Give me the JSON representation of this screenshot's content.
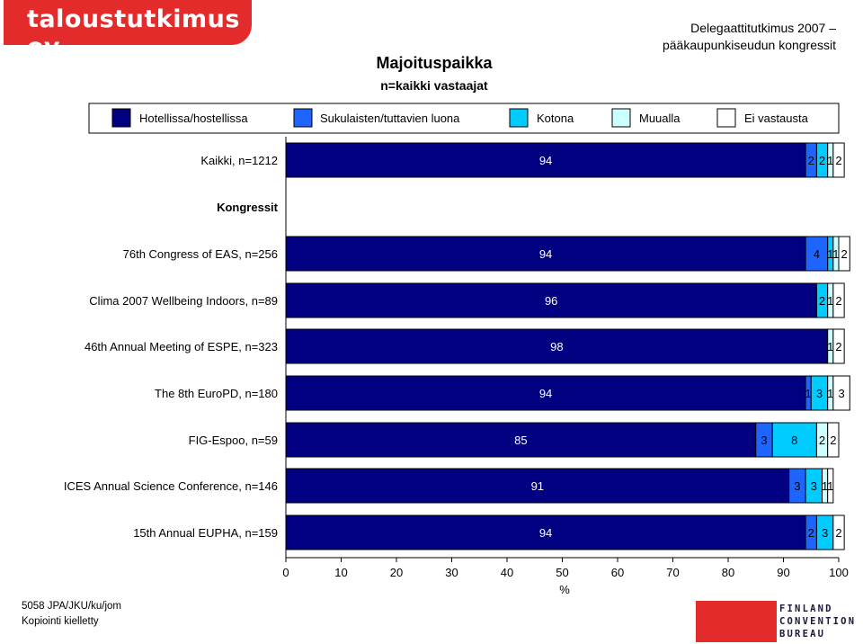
{
  "header": {
    "logo_text": "taloustutkimus oy",
    "title": "Majoituspaikka",
    "subtitle": "n=kaikki vastaajat",
    "study_line1": "Delegaattitutkimus 2007 –",
    "study_line2": "pääkaupunkiseudun kongressit"
  },
  "footer": {
    "code": "5058 JPA/JKU/ku/jom",
    "copyright": "Kopiointi kielletty",
    "brand_lines": [
      "FINLAND",
      "CONVENTION",
      "BUREAU"
    ]
  },
  "colors": {
    "series": [
      "#000080",
      "#1e64ff",
      "#00ccff",
      "#ccffff",
      "#ffffff"
    ]
  },
  "chart_data": {
    "type": "bar",
    "orientation": "horizontal",
    "stacked": true,
    "xlabel": "%",
    "xlim": [
      0,
      100
    ],
    "x_ticks": [
      0,
      10,
      20,
      30,
      40,
      50,
      60,
      70,
      80,
      90,
      100
    ],
    "legend_position": "top",
    "series_names": [
      "Hotellissa/hostellissa",
      "Sukulaisten/tuttavien luona",
      "Kotona",
      "Muualla",
      "Ei vastausta"
    ],
    "group_heading": "Kongressit",
    "rows": [
      {
        "label": "Kaikki, n=1212",
        "values": [
          94,
          2,
          2,
          1,
          2
        ]
      },
      {
        "label": "76th Congress of EAS, n=256",
        "values": [
          94,
          4,
          1,
          1,
          2
        ]
      },
      {
        "label": "Clima 2007 Wellbeing Indoors, n=89",
        "values": [
          96,
          0,
          2,
          1,
          2
        ]
      },
      {
        "label": "46th Annual Meeting of ESPE, n=323",
        "values": [
          98,
          0,
          0,
          1,
          2
        ]
      },
      {
        "label": "The 8th EuroPD, n=180",
        "values": [
          94,
          1,
          3,
          1,
          3
        ]
      },
      {
        "label": "FIG-Espoo, n=59",
        "values": [
          85,
          3,
          8,
          2,
          2
        ]
      },
      {
        "label": "ICES Annual Science Conference, n=146",
        "values": [
          91,
          3,
          3,
          1,
          1
        ]
      },
      {
        "label": "15th Annual EUPHA, n=159",
        "values": [
          94,
          2,
          3,
          0,
          2
        ]
      }
    ]
  }
}
